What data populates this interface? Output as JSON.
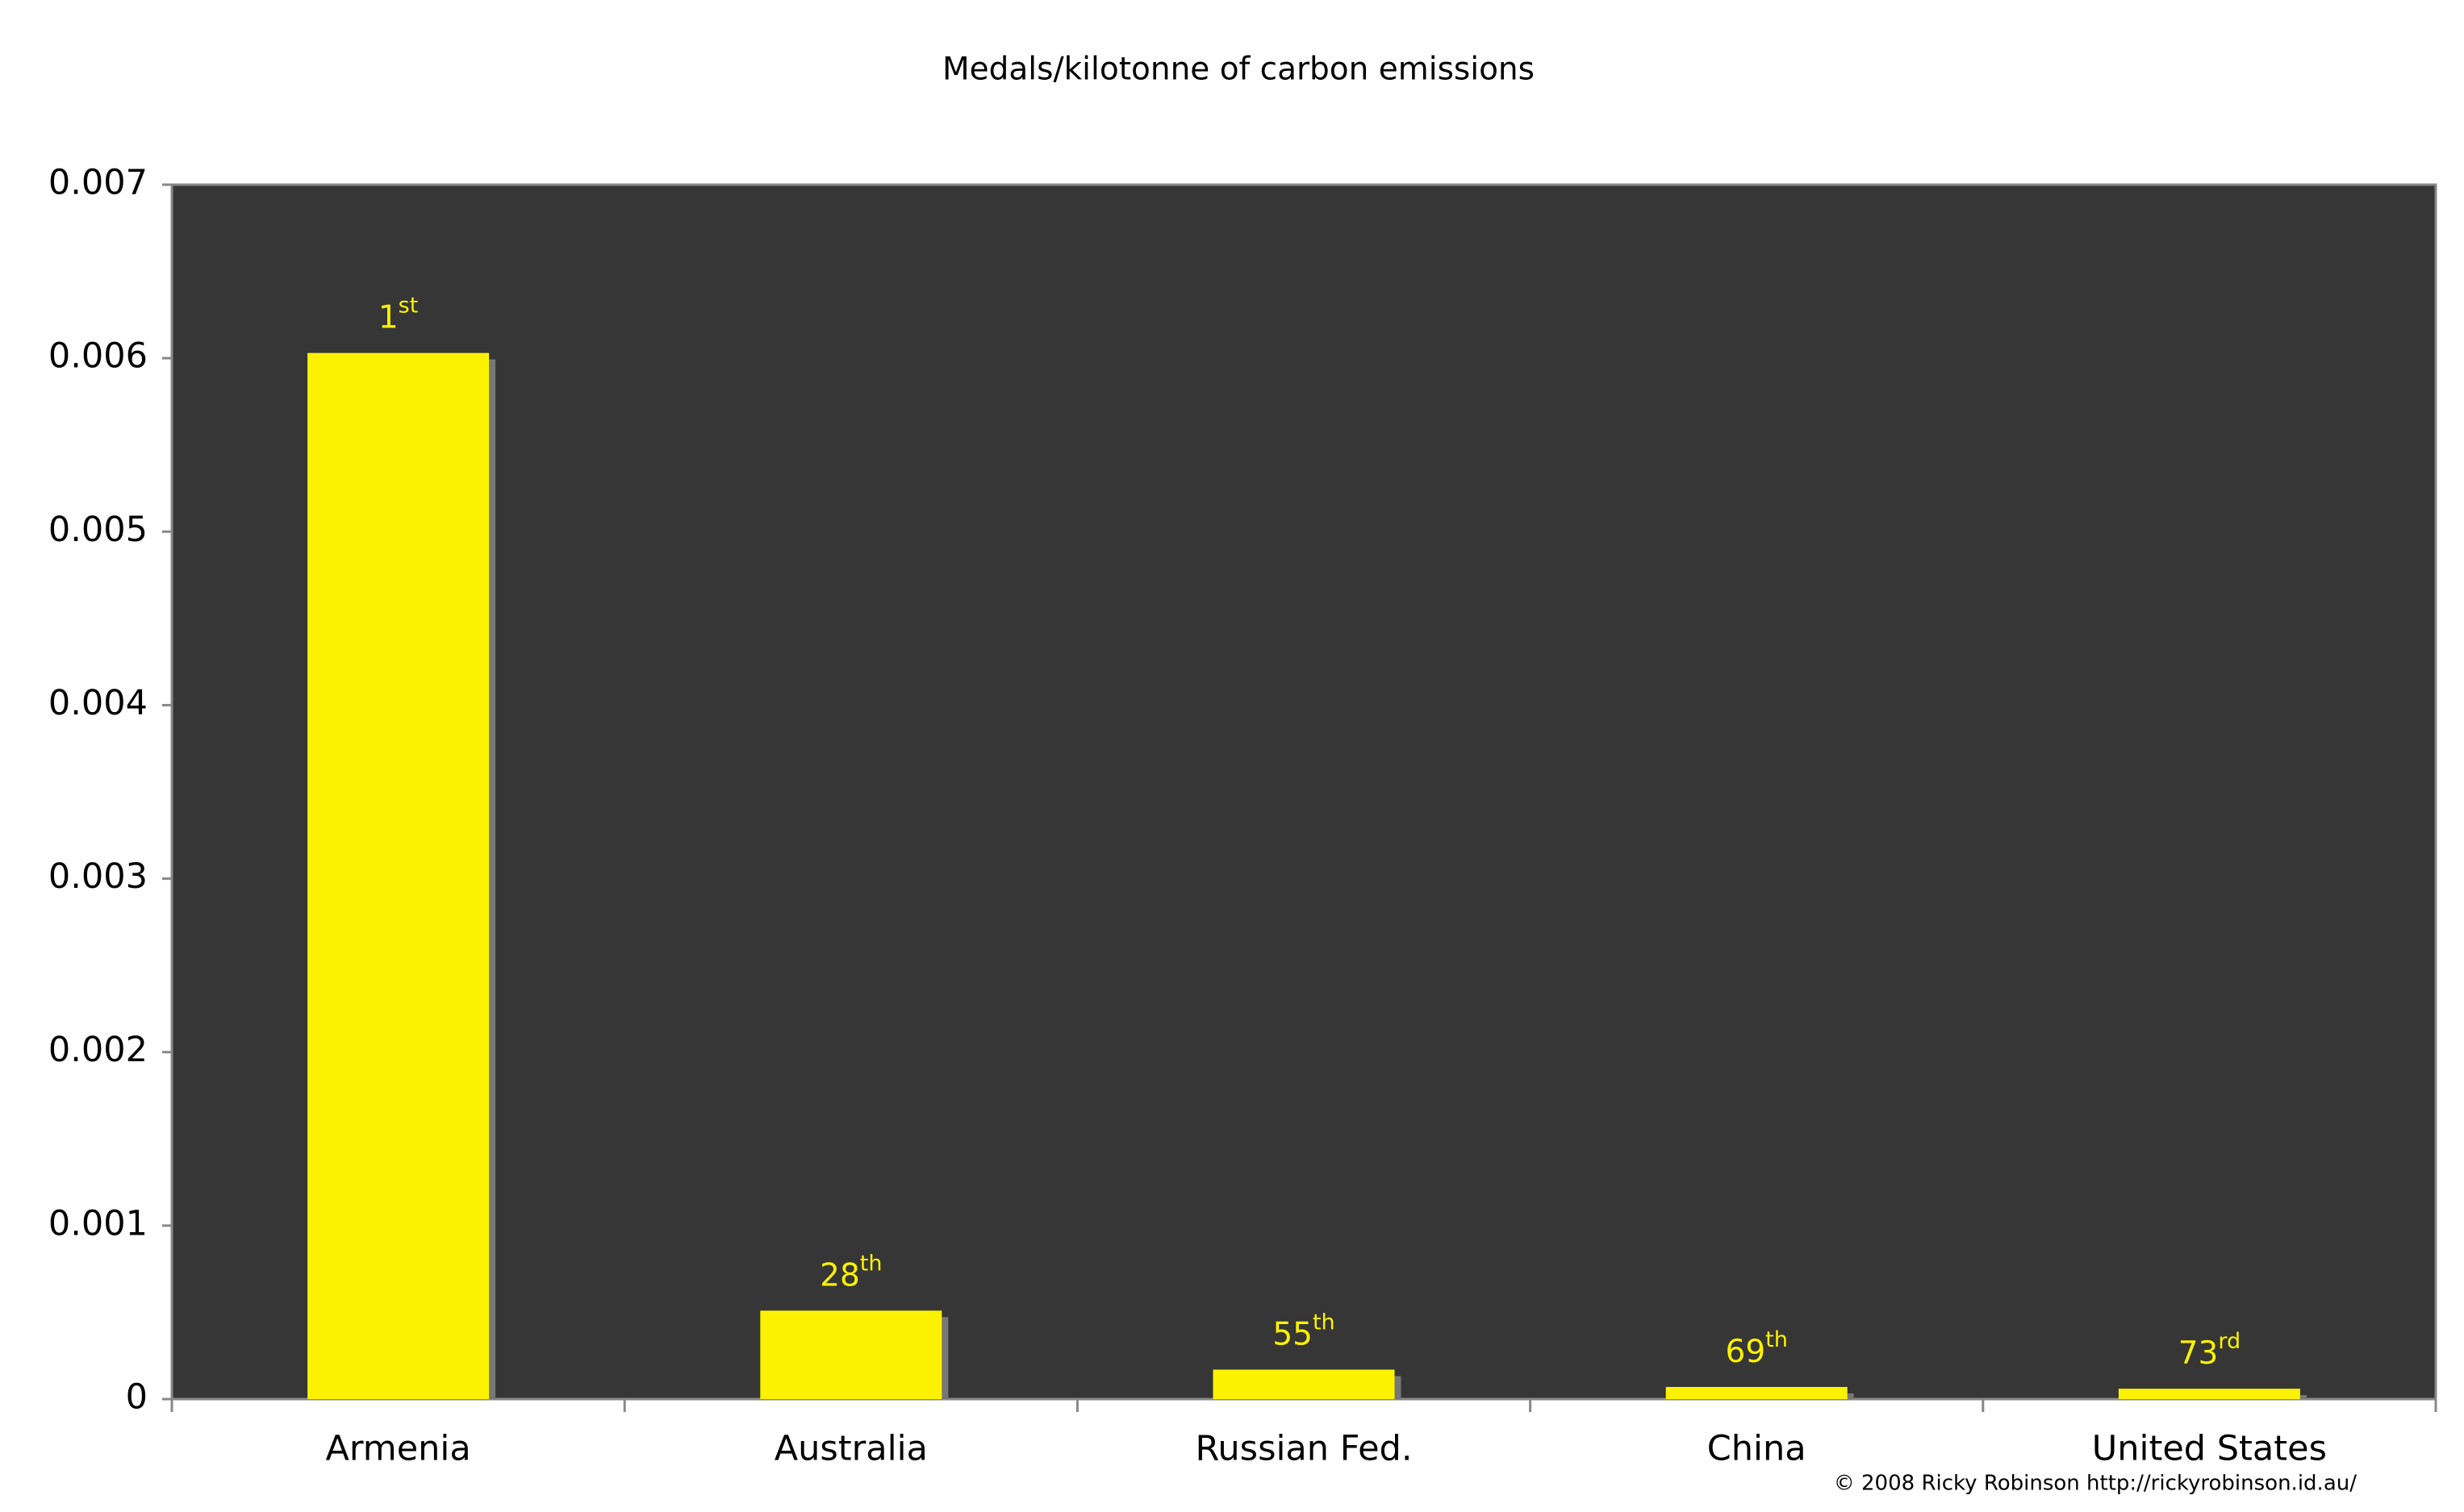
{
  "chart_data": {
    "type": "bar",
    "title": "Medals/kilotonne of carbon emissions",
    "categories": [
      "Armenia",
      "Australia",
      "Russian Fed.",
      "China",
      "United States"
    ],
    "values": [
      0.00603,
      0.00051,
      0.00017,
      7e-05,
      6e-05
    ],
    "rank_labels": [
      "1st",
      "28th",
      "55th",
      "69th",
      "73rd"
    ],
    "color": "#fcf200",
    "background": "#363636",
    "ylim": [
      0,
      0.007
    ],
    "yticks": [
      0,
      0.001,
      0.002,
      0.003,
      0.004,
      0.005,
      0.006,
      0.007
    ],
    "credit": "© 2008 Ricky Robinson http://rickyrobinson.id.au/"
  }
}
